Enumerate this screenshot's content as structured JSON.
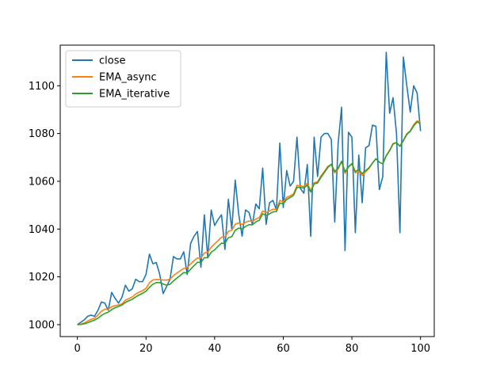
{
  "chart_data": {
    "type": "line",
    "title": "",
    "xlabel": "",
    "ylabel": "",
    "xlim": [
      -5,
      104
    ],
    "ylim": [
      995,
      1117
    ],
    "grid": false,
    "legend_placement": "top-left",
    "x_ticks": [
      0,
      20,
      40,
      60,
      80,
      100
    ],
    "y_ticks": [
      1000,
      1020,
      1040,
      1060,
      1080,
      1100
    ],
    "x_tick_labels": [
      "0",
      "20",
      "40",
      "60",
      "80",
      "100"
    ],
    "y_tick_labels": [
      "1000",
      "1020",
      "1040",
      "1060",
      "1080",
      "1100"
    ],
    "series": [
      {
        "name": "close",
        "color": "#1f77b4",
        "values": [
          1000,
          1001,
          1002,
          1003.5,
          1004,
          1003.5,
          1006,
          1009.5,
          1009,
          1006,
          1013.5,
          1011,
          1009,
          1011.5,
          1016.5,
          1014,
          1015,
          1019,
          1018,
          1018,
          1021,
          1029.5,
          1025.5,
          1026,
          1021,
          1013,
          1016,
          1019,
          1028.5,
          1027.5,
          1027.5,
          1030.5,
          1021,
          1034,
          1037,
          1039,
          1024,
          1046,
          1028,
          1048,
          1041.5,
          1044,
          1046,
          1031.5,
          1052.5,
          1040,
          1060.5,
          1046.5,
          1037,
          1048,
          1047,
          1042,
          1050.5,
          1048.5,
          1065.5,
          1042,
          1051,
          1052,
          1048,
          1076,
          1049,
          1064.5,
          1058,
          1060,
          1078.5,
          1057,
          1055,
          1067,
          1037,
          1078.5,
          1062,
          1078.5,
          1080,
          1080,
          1077.5,
          1043,
          1076,
          1091,
          1031,
          1080.5,
          1078.5,
          1038.5,
          1071,
          1051,
          1074,
          1075,
          1083.5,
          1083,
          1056.5,
          1062,
          1114,
          1088.5,
          1095,
          1080,
          1038.5,
          1112,
          1100,
          1089,
          1100,
          1097,
          1081
        ]
      },
      {
        "name": "EMA_async",
        "color": "#ff7f0e",
        "values": [
          1000,
          1000.2,
          1000.7,
          1001.5,
          1002.2,
          1002.7,
          1004.0,
          1005.6,
          1006.4,
          1006.5,
          1007.5,
          1008.0,
          1008.2,
          1008.7,
          1010.2,
          1010.9,
          1011.6,
          1012.8,
          1013.6,
          1014.2,
          1015.2,
          1017.5,
          1018.7,
          1018.9,
          1018.8,
          1018.7,
          1018.6,
          1019.1,
          1020.5,
          1021.6,
          1022.6,
          1023.5,
          1023.9,
          1025.4,
          1026.8,
          1027.9,
          1027.8,
          1030.0,
          1030.3,
          1032.4,
          1033.8,
          1035.2,
          1036.6,
          1036.7,
          1039.0,
          1039.5,
          1042.0,
          1042.6,
          1041.9,
          1042.8,
          1043.4,
          1043.2,
          1044.2,
          1044.8,
          1047.6,
          1046.9,
          1047.6,
          1048.3,
          1048.2,
          1052.0,
          1051.4,
          1053.3,
          1053.9,
          1054.8,
          1058.3,
          1058.1,
          1057.8,
          1059.2,
          1056.0,
          1059.4,
          1059.8,
          1062.3,
          1064.2,
          1066.3,
          1067.1,
          1063.5,
          1065.2,
          1068.3,
          1063.3,
          1065.9,
          1067.3,
          1063.5,
          1064.2,
          1062.4,
          1064.0,
          1065.4,
          1067.7,
          1069.5,
          1068.0,
          1067.3,
          1070.8,
          1073.0,
          1075.8,
          1076.3,
          1074.6,
          1077.2,
          1079.9,
          1081.1,
          1083.7,
          1085.3,
          1084.7
        ]
      },
      {
        "name": "EMA_iterative",
        "color": "#2ca02c",
        "values": [
          1000,
          1000.1,
          1000.3,
          1000.8,
          1001.4,
          1001.9,
          1002.7,
          1003.8,
          1004.7,
          1005.2,
          1006.3,
          1007.1,
          1007.6,
          1008.2,
          1009.3,
          1010.0,
          1010.6,
          1011.6,
          1012.4,
          1013.1,
          1014.0,
          1015.6,
          1016.9,
          1017.6,
          1017.6,
          1017.0,
          1016.5,
          1016.9,
          1018.3,
          1019.5,
          1020.6,
          1021.8,
          1021.6,
          1023.2,
          1024.7,
          1026.1,
          1026.0,
          1028.0,
          1028.0,
          1030.3,
          1031.3,
          1032.8,
          1034.1,
          1034.0,
          1036.4,
          1036.8,
          1039.5,
          1040.4,
          1040.0,
          1041.1,
          1041.8,
          1041.8,
          1043.0,
          1043.7,
          1046.4,
          1045.7,
          1046.4,
          1047.2,
          1047.3,
          1050.9,
          1050.6,
          1052.4,
          1053.2,
          1054.1,
          1057.5,
          1057.4,
          1057.2,
          1058.4,
          1055.5,
          1058.9,
          1059.3,
          1061.7,
          1063.7,
          1065.8,
          1067.1,
          1064.1,
          1065.6,
          1068.4,
          1064.0,
          1066.1,
          1067.4,
          1064.1,
          1064.9,
          1063.2,
          1064.5,
          1065.7,
          1067.6,
          1069.4,
          1068.0,
          1067.3,
          1070.6,
          1072.8,
          1075.6,
          1076.2,
          1074.7,
          1077.0,
          1079.6,
          1080.9,
          1083.2,
          1084.8,
          1084.2
        ]
      }
    ]
  }
}
